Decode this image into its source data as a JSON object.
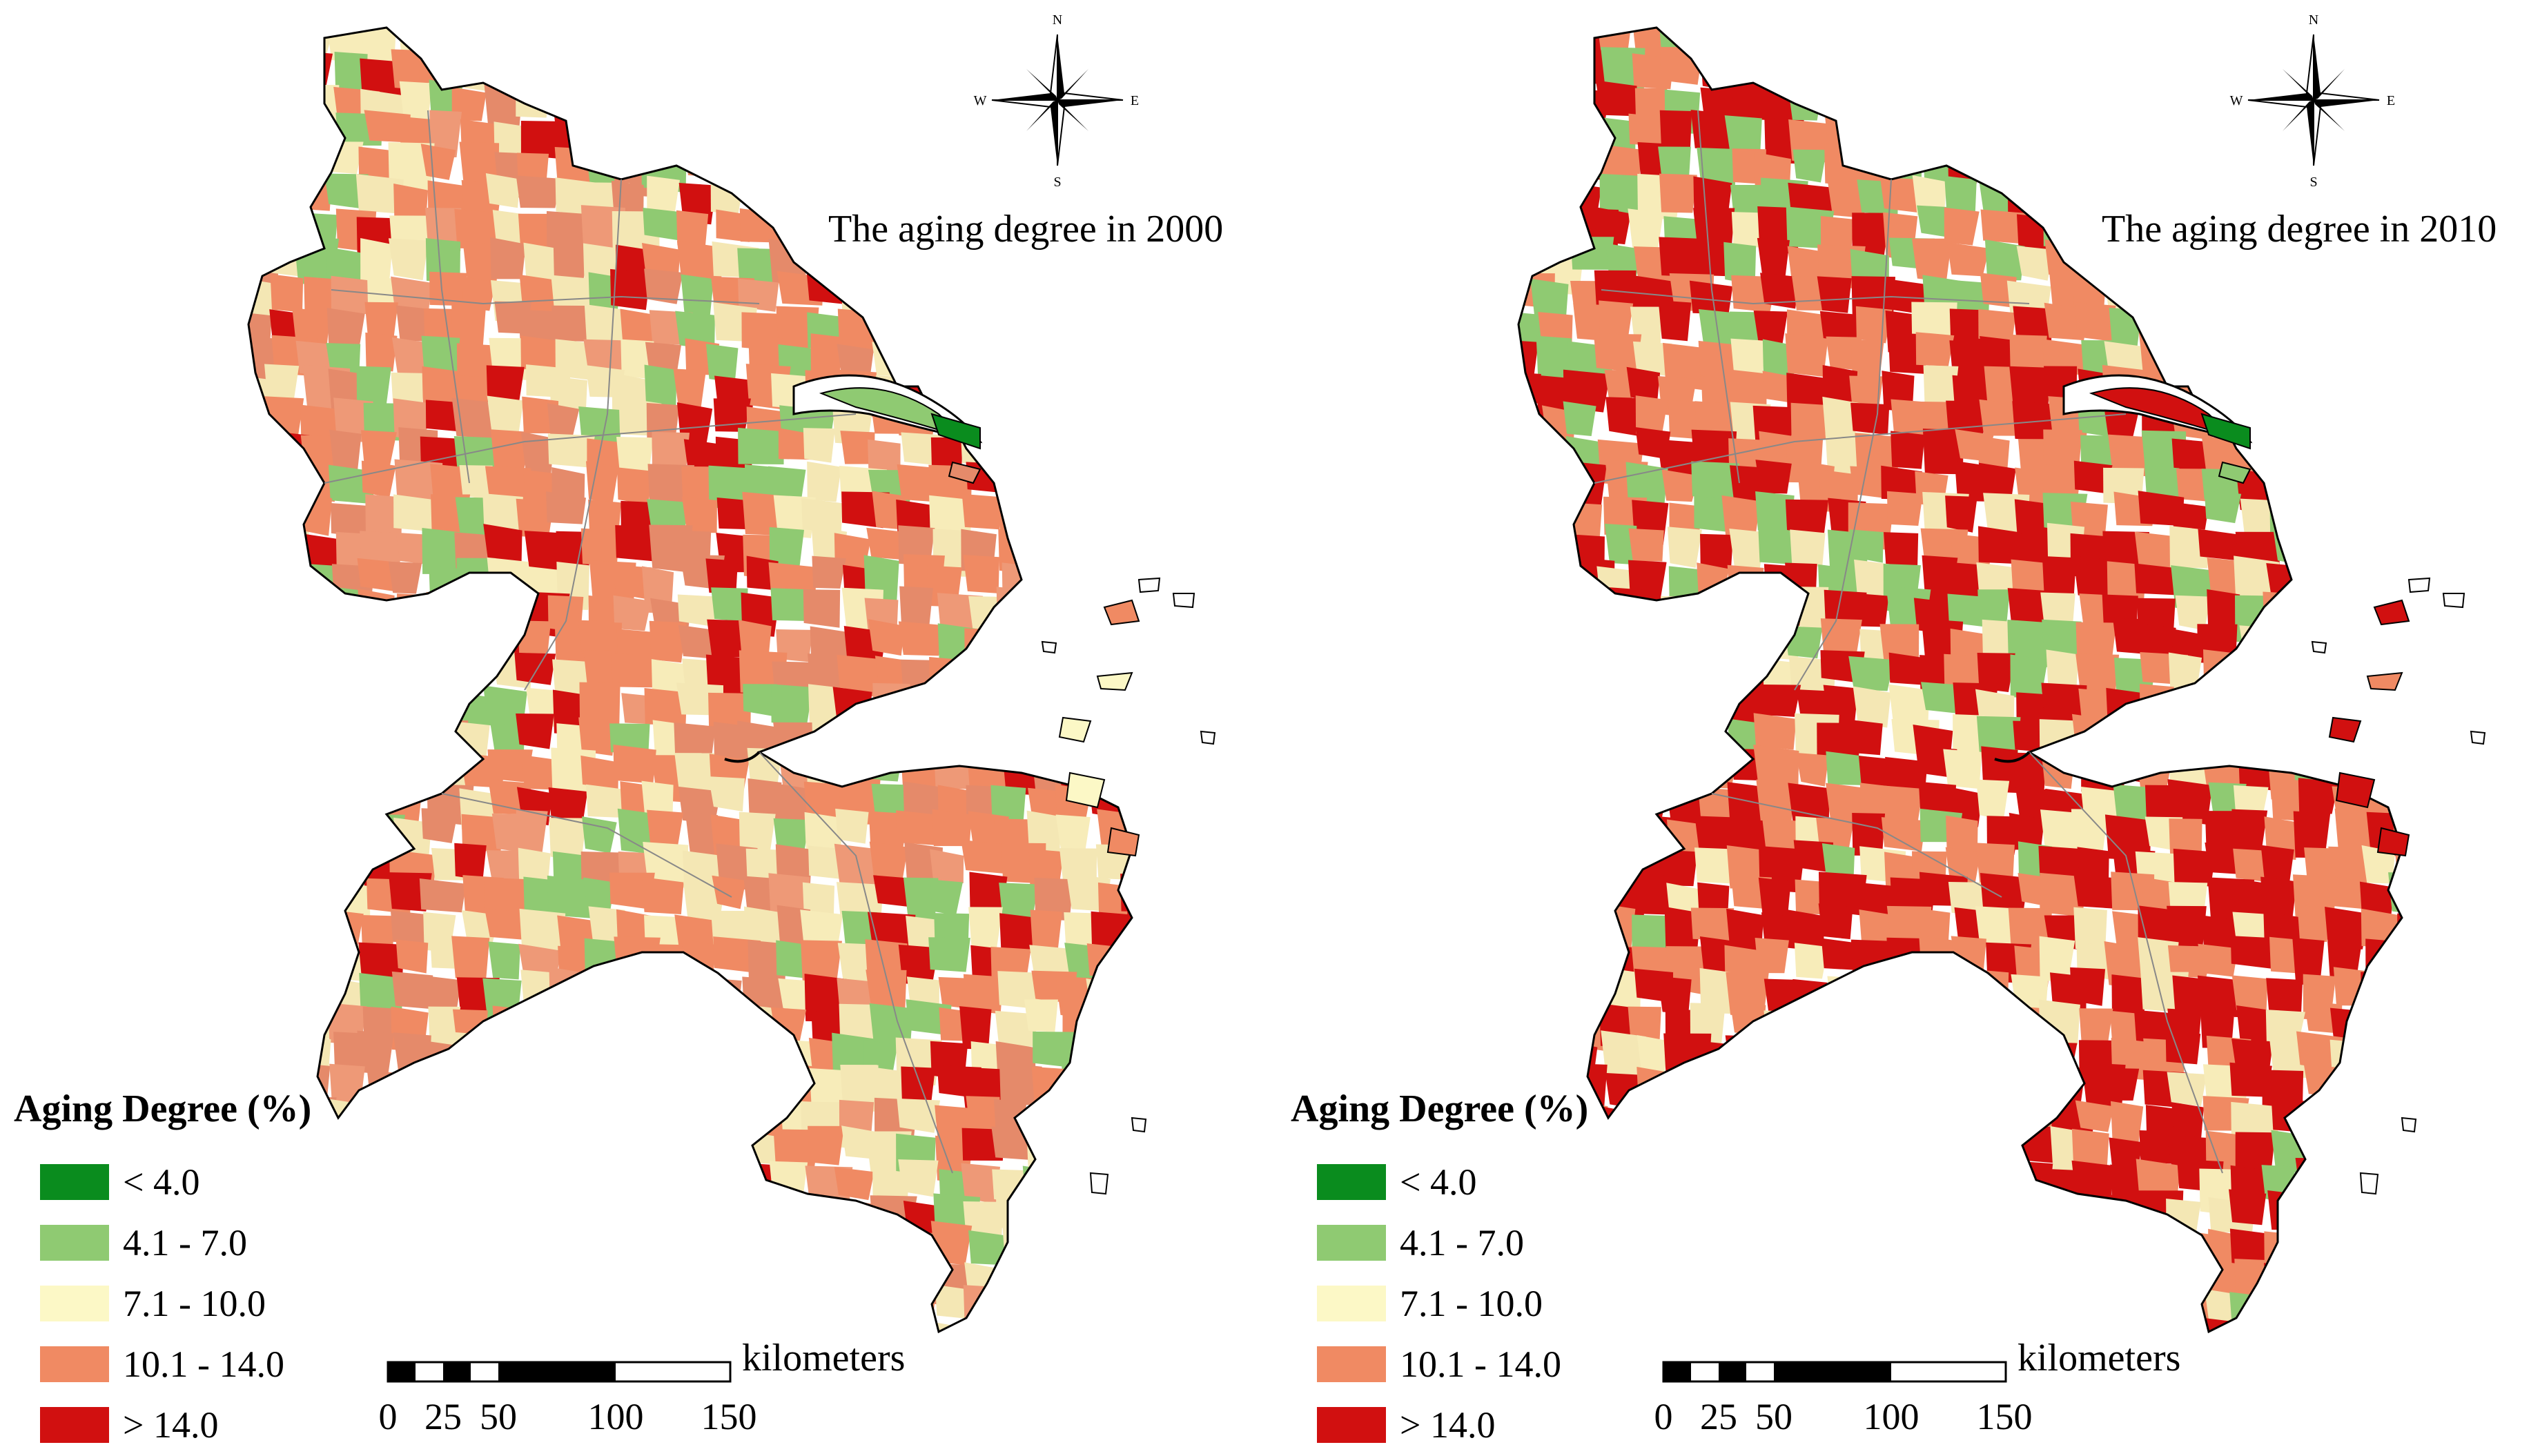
{
  "maps": [
    {
      "title": "The aging degree in 2000",
      "palette": [
        "#e58a6a",
        "#f08a63",
        "#ee9977",
        "#f7ecb9",
        "#e58a6a",
        "#8fca72",
        "#f08a63",
        "#d11010",
        "#f4e7b4",
        "#f08a63",
        "#8fca72",
        "#f08a63",
        "#f4e7b4",
        "#d11010",
        "#f08a63",
        "#f4e7b4"
      ]
    },
    {
      "title": "The aging degree in 2010",
      "palette": [
        "#d11010",
        "#f08a63",
        "#d11010",
        "#f7ecb9",
        "#d11010",
        "#8fca72",
        "#f08a63",
        "#d11010",
        "#f08a63",
        "#d11010",
        "#8fca72",
        "#f08a63",
        "#f4e7b4",
        "#d11010",
        "#d11010",
        "#f08a63"
      ]
    }
  ],
  "legend": {
    "title": "Aging Degree (%)",
    "classes": [
      {
        "label": "< 4.0",
        "color": "#0a8c1e"
      },
      {
        "label": "4.1 - 7.0",
        "color": "#8fca72"
      },
      {
        "label": "7.1 - 10.0",
        "color": "#fcf8c6"
      },
      {
        "label": "10.1 - 14.0",
        "color": "#f08a63"
      },
      {
        "label": "> 14.0",
        "color": "#d11010"
      }
    ]
  },
  "scale_bar": {
    "unit": "kilometers",
    "ticks": [
      "0",
      "25",
      "50",
      "100",
      "150"
    ]
  },
  "compass": {
    "n": "N",
    "s": "S",
    "e": "E",
    "w": "W"
  }
}
